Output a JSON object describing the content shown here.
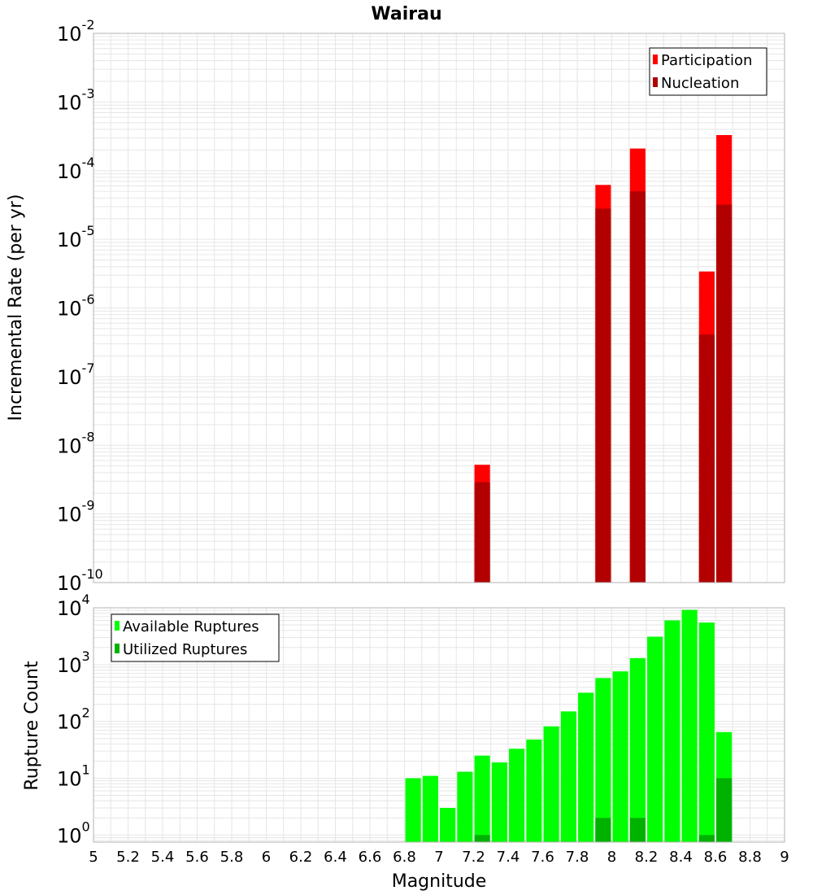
{
  "colors": {
    "participation": "#ff0000",
    "nucleation": "#b20000",
    "available": "#00ff00",
    "utilized": "#00b200",
    "grid": "#e6e6e6",
    "frame": "#b3b3b3"
  },
  "chart_data": [
    {
      "type": "bar",
      "title": "Wairau",
      "ylabel": "Incremental Rate (per yr)",
      "xlim": [
        5,
        9
      ],
      "ylim": [
        1e-10,
        0.01
      ],
      "yscale": "log",
      "bar_width": 0.09,
      "grid": true,
      "legend_position": "top-right",
      "y_tick_labels": [
        {
          "exp": -2,
          "base": "10",
          "power": "-2"
        },
        {
          "exp": -3,
          "base": "10",
          "power": "-3"
        },
        {
          "exp": -4,
          "base": "10",
          "power": "-4"
        },
        {
          "exp": -5,
          "base": "10",
          "power": "-5"
        },
        {
          "exp": -6,
          "base": "10",
          "power": "-6"
        },
        {
          "exp": -7,
          "base": "10",
          "power": "-7"
        },
        {
          "exp": -8,
          "base": "10",
          "power": "-8"
        },
        {
          "exp": -9,
          "base": "10",
          "power": "-9"
        },
        {
          "exp": -10,
          "base": "10",
          "power": "-10"
        }
      ],
      "series": [
        {
          "name": "Participation",
          "color": "#ff0000",
          "points": [
            {
              "x": 7.25,
              "y": 5.2e-09
            },
            {
              "x": 7.95,
              "y": 6.2e-05
            },
            {
              "x": 8.15,
              "y": 0.00021
            },
            {
              "x": 8.55,
              "y": 3.4e-06
            },
            {
              "x": 8.65,
              "y": 0.00033
            }
          ]
        },
        {
          "name": "Nucleation",
          "color": "#b20000",
          "points": [
            {
              "x": 7.25,
              "y": 2.9e-09
            },
            {
              "x": 7.95,
              "y": 2.8e-05
            },
            {
              "x": 8.15,
              "y": 5e-05
            },
            {
              "x": 8.55,
              "y": 4.1e-07
            },
            {
              "x": 8.65,
              "y": 3.2e-05
            }
          ]
        }
      ]
    },
    {
      "type": "bar",
      "ylabel": "Rupture Count",
      "xlabel": "Magnitude",
      "xlim": [
        5,
        9
      ],
      "ylim": [
        0.75,
        10000
      ],
      "yscale": "log",
      "bar_width": 0.09,
      "grid": true,
      "legend_position": "top-left",
      "x_ticks": [
        "5",
        "5.2",
        "5.4",
        "5.6",
        "5.8",
        "6",
        "6.2",
        "6.4",
        "6.6",
        "6.8",
        "7",
        "7.2",
        "7.4",
        "7.6",
        "7.8",
        "8",
        "8.2",
        "8.4",
        "8.6",
        "8.8",
        "9"
      ],
      "y_tick_labels": [
        {
          "exp": 4,
          "base": "10",
          "power": "4"
        },
        {
          "exp": 3,
          "base": "10",
          "power": "3"
        },
        {
          "exp": 2,
          "base": "10",
          "power": "2"
        },
        {
          "exp": 1,
          "base": "10",
          "power": "1"
        },
        {
          "exp": 0,
          "base": "10",
          "power": "0"
        }
      ],
      "series": [
        {
          "name": "Available Ruptures",
          "color": "#00ff00",
          "points": [
            {
              "x": 6.85,
              "y": 10
            },
            {
              "x": 6.95,
              "y": 11
            },
            {
              "x": 7.05,
              "y": 3
            },
            {
              "x": 7.15,
              "y": 13
            },
            {
              "x": 7.25,
              "y": 25
            },
            {
              "x": 7.35,
              "y": 19
            },
            {
              "x": 7.45,
              "y": 33
            },
            {
              "x": 7.55,
              "y": 48
            },
            {
              "x": 7.65,
              "y": 82
            },
            {
              "x": 7.75,
              "y": 150
            },
            {
              "x": 7.85,
              "y": 320
            },
            {
              "x": 7.95,
              "y": 580
            },
            {
              "x": 8.05,
              "y": 760
            },
            {
              "x": 8.15,
              "y": 1300
            },
            {
              "x": 8.25,
              "y": 3100
            },
            {
              "x": 8.35,
              "y": 6000
            },
            {
              "x": 8.45,
              "y": 9200
            },
            {
              "x": 8.55,
              "y": 5500
            },
            {
              "x": 8.65,
              "y": 65
            }
          ]
        },
        {
          "name": "Utilized Ruptures",
          "color": "#00b200",
          "points": [
            {
              "x": 7.25,
              "y": 1
            },
            {
              "x": 7.95,
              "y": 2
            },
            {
              "x": 8.15,
              "y": 2
            },
            {
              "x": 8.55,
              "y": 1
            },
            {
              "x": 8.65,
              "y": 10
            }
          ]
        }
      ]
    }
  ]
}
